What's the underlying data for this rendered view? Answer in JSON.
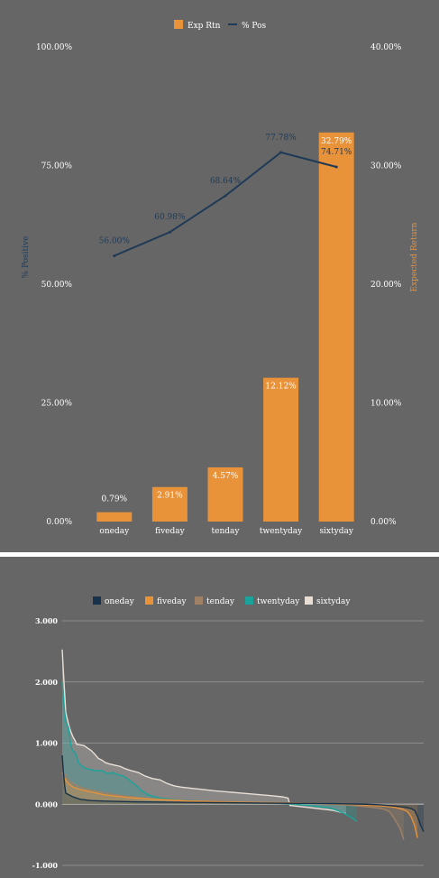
{
  "chart_data": [
    {
      "type": "bar",
      "categories": [
        "oneday",
        "fiveday",
        "tenday",
        "twentyday",
        "sixtyday"
      ],
      "legend_position": "top",
      "grid": false,
      "series": [
        {
          "name": "Exp Rtn",
          "type": "bar",
          "axis": "right",
          "color": "#e8923a",
          "values": [
            0.79,
            2.91,
            4.57,
            12.12,
            32.79
          ],
          "labels": [
            "0.79%",
            "2.91%",
            "4.57%",
            "12.12%",
            "32.79%"
          ]
        },
        {
          "name": "% Pos",
          "type": "line",
          "axis": "left",
          "color": "#1f3a56",
          "values": [
            56.0,
            60.98,
            68.64,
            77.78,
            74.71
          ],
          "labels": [
            "56.00%",
            "60.98%",
            "68.64%",
            "77.78%",
            "74.71%"
          ]
        }
      ],
      "y_left": {
        "label": "% Positive",
        "color": "#1f3a56",
        "range": [
          0,
          100
        ],
        "ticks": [
          0,
          25,
          50,
          75,
          100
        ],
        "tick_labels": [
          "0.00%",
          "25.00%",
          "50.00%",
          "75.00%",
          "100.00%"
        ]
      },
      "y_right": {
        "label": "Expected Return",
        "color": "#e8923a",
        "range": [
          0,
          40
        ],
        "ticks": [
          0,
          10,
          20,
          30,
          40
        ],
        "tick_labels": [
          "0.00%",
          "10.00%",
          "20.00%",
          "30.00%",
          "40.00%"
        ]
      }
    },
    {
      "type": "area",
      "legend_position": "top",
      "grid": true,
      "ylim": [
        -1,
        3
      ],
      "y_ticks": [
        -1,
        0,
        1,
        2,
        3
      ],
      "y_tick_labels": [
        "-1.000",
        "0.000",
        "1.000",
        "2.000",
        "3.000"
      ],
      "series": [
        {
          "name": "oneday",
          "color": "#17324a",
          "points": [
            [
              0,
              0.8
            ],
            [
              0.3,
              0.55
            ],
            [
              0.7,
              0.3
            ],
            [
              1,
              0.18
            ],
            [
              3,
              0.12
            ],
            [
              5,
              0.08
            ],
            [
              8,
              0.06
            ],
            [
              12,
              0.05
            ],
            [
              20,
              0.04
            ],
            [
              35,
              0.03
            ],
            [
              55,
              0.02
            ],
            [
              75,
              0.01
            ],
            [
              84,
              0.0
            ],
            [
              88,
              -0.01
            ],
            [
              92,
              -0.03
            ],
            [
              95,
              -0.05
            ],
            [
              96.5,
              -0.07
            ],
            [
              97.5,
              -0.1
            ],
            [
              98.3,
              -0.2
            ],
            [
              99.2,
              -0.35
            ],
            [
              100,
              -0.45
            ]
          ]
        },
        {
          "name": "fiveday",
          "color": "#e8923a",
          "points": [
            [
              0,
              0.52
            ],
            [
              0.7,
              0.42
            ],
            [
              1.5,
              0.35
            ],
            [
              3,
              0.28
            ],
            [
              5,
              0.24
            ],
            [
              8,
              0.2
            ],
            [
              12,
              0.15
            ],
            [
              18,
              0.11
            ],
            [
              25,
              0.08
            ],
            [
              35,
              0.05
            ],
            [
              50,
              0.03
            ],
            [
              65,
              0.02
            ],
            [
              80,
              0.0
            ],
            [
              85,
              -0.02
            ],
            [
              89,
              -0.03
            ],
            [
              92,
              -0.05
            ],
            [
              94,
              -0.08
            ],
            [
              95.5,
              -0.12
            ],
            [
              96.5,
              -0.2
            ],
            [
              97.5,
              -0.35
            ],
            [
              98.3,
              -0.55
            ]
          ]
        },
        {
          "name": "tenday",
          "color": "#a08166",
          "points": [
            [
              0,
              0.58
            ],
            [
              1,
              0.45
            ],
            [
              2,
              0.38
            ],
            [
              4,
              0.3
            ],
            [
              6,
              0.26
            ],
            [
              9,
              0.22
            ],
            [
              13,
              0.17
            ],
            [
              18,
              0.13
            ],
            [
              25,
              0.09
            ],
            [
              35,
              0.06
            ],
            [
              50,
              0.04
            ],
            [
              65,
              0.02
            ],
            [
              75,
              0.0
            ],
            [
              80,
              -0.02
            ],
            [
              84,
              -0.04
            ],
            [
              87,
              -0.06
            ],
            [
              89,
              -0.08
            ],
            [
              90.5,
              -0.12
            ],
            [
              91.5,
              -0.2
            ],
            [
              92.5,
              -0.3
            ],
            [
              93.5,
              -0.4
            ],
            [
              94.5,
              -0.58
            ]
          ]
        },
        {
          "name": "twentyday",
          "color": "#1aa39a",
          "points": [
            [
              0,
              2.0
            ],
            [
              0.5,
              1.6
            ],
            [
              1,
              1.35
            ],
            [
              1.8,
              1.25
            ],
            [
              2.3,
              1.0
            ],
            [
              2.8,
              0.88
            ],
            [
              3.5,
              0.85
            ],
            [
              4,
              0.78
            ],
            [
              4.5,
              0.68
            ],
            [
              5.5,
              0.62
            ],
            [
              7,
              0.58
            ],
            [
              9,
              0.55
            ],
            [
              11,
              0.55
            ],
            [
              12.5,
              0.5
            ],
            [
              14,
              0.52
            ],
            [
              15.5,
              0.48
            ],
            [
              17,
              0.46
            ],
            [
              18.5,
              0.4
            ],
            [
              19.5,
              0.35
            ],
            [
              20,
              0.33
            ],
            [
              21,
              0.28
            ],
            [
              22,
              0.22
            ],
            [
              24,
              0.15
            ],
            [
              27,
              0.1
            ],
            [
              32,
              0.07
            ],
            [
              40,
              0.05
            ],
            [
              55,
              0.03
            ],
            [
              64,
              0.0
            ],
            [
              68,
              -0.02
            ],
            [
              71,
              -0.04
            ],
            [
              74,
              -0.06
            ],
            [
              76,
              -0.1
            ],
            [
              78,
              -0.15
            ],
            [
              80,
              -0.22
            ],
            [
              81.5,
              -0.28
            ]
          ]
        },
        {
          "name": "sixtyday",
          "color": "#e7ded6",
          "points": [
            [
              0,
              2.53
            ],
            [
              0.3,
              2.2
            ],
            [
              0.7,
              1.8
            ],
            [
              1,
              1.5
            ],
            [
              1.8,
              1.3
            ],
            [
              2.3,
              1.2
            ],
            [
              3,
              1.1
            ],
            [
              3.5,
              1.05
            ],
            [
              4,
              0.98
            ],
            [
              6,
              0.96
            ],
            [
              7,
              0.92
            ],
            [
              8,
              0.88
            ],
            [
              9,
              0.82
            ],
            [
              10,
              0.75
            ],
            [
              11,
              0.72
            ],
            [
              12,
              0.68
            ],
            [
              13,
              0.66
            ],
            [
              14.5,
              0.64
            ],
            [
              16,
              0.62
            ],
            [
              17.5,
              0.58
            ],
            [
              19,
              0.55
            ],
            [
              21,
              0.52
            ],
            [
              23,
              0.46
            ],
            [
              25,
              0.42
            ],
            [
              27,
              0.4
            ],
            [
              29,
              0.34
            ],
            [
              31,
              0.3
            ],
            [
              33,
              0.28
            ],
            [
              36,
              0.26
            ],
            [
              39,
              0.24
            ],
            [
              42,
              0.22
            ],
            [
              46,
              0.2
            ],
            [
              50,
              0.18
            ],
            [
              54,
              0.16
            ],
            [
              58,
              0.14
            ],
            [
              61,
              0.12
            ],
            [
              62.5,
              0.1
            ],
            [
              63,
              -0.02
            ],
            [
              66,
              -0.04
            ],
            [
              69,
              -0.06
            ],
            [
              72,
              -0.08
            ],
            [
              75,
              -0.1
            ],
            [
              77,
              -0.13
            ],
            [
              78.5,
              -0.15
            ]
          ]
        }
      ]
    }
  ]
}
